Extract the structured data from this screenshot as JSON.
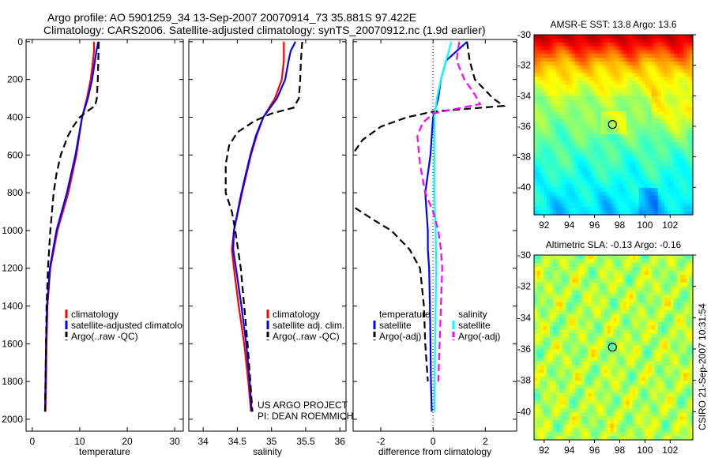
{
  "title_line1": "Argo profile: AO 5901259_34 13-Sep-2007 20070914_73 35.881S 97.422E",
  "title_line2": "Climatology: CARS2006. Satellite-adjusted climatology: synTS_20070912.nc (1.9d earlier)",
  "credit_project": "US ARGO PROJECT",
  "credit_pi": "PI: DEAN ROEMMICH",
  "timestamp": "CSIRO 21-Sep-2007 10:31:54",
  "colors": {
    "climatology": "#ff0000",
    "satellite": "#0000ff",
    "argo": "#000000",
    "sal_satellite": "#00ffff",
    "sal_argo": "#ff00ff"
  },
  "chart_data": [
    {
      "type": "line",
      "xlabel": "temperature",
      "ylabel": "",
      "xlim": [
        -1.3,
        31.8
      ],
      "ylim": [
        2063,
        -12
      ],
      "xticks": [
        "0",
        "10",
        "20",
        "30"
      ],
      "yticks": [
        "0",
        "200",
        "400",
        "600",
        "800",
        "1000",
        "1200",
        "1400",
        "1600",
        "1800",
        "2000"
      ],
      "legend": [
        "climatology",
        "satellite-adjusted climatology",
        "Argo(..raw -QC)"
      ],
      "series": [
        {
          "name": "climatology",
          "color": "#ff0000",
          "dash": false,
          "depth": [
            0,
            50,
            100,
            200,
            300,
            400,
            500,
            600,
            800,
            1000,
            1200,
            1400,
            1600,
            1800,
            1960
          ],
          "values": [
            13.0,
            13.0,
            12.8,
            12.3,
            11.5,
            10.5,
            9.9,
            9.3,
            7.6,
            5.3,
            3.8,
            3.2,
            3.0,
            2.9,
            2.8
          ]
        },
        {
          "name": "satellite-adjusted climatology",
          "color": "#0000ff",
          "dash": false,
          "depth": [
            0,
            50,
            100,
            200,
            300,
            400,
            500,
            600,
            800,
            1000,
            1200,
            1400,
            1600,
            1800,
            1960
          ],
          "values": [
            13.9,
            13.5,
            13.2,
            12.6,
            11.7,
            10.5,
            9.8,
            9.1,
            7.3,
            5.1,
            3.7,
            3.1,
            2.9,
            2.8,
            2.7
          ]
        },
        {
          "name": "Argo(..raw -QC)",
          "color": "#000000",
          "dash": true,
          "depth": [
            0,
            100,
            200,
            300,
            340,
            370,
            400,
            450,
            500,
            600,
            700,
            800,
            1000,
            1200,
            1400,
            1600,
            1800,
            1960
          ],
          "values": [
            14.0,
            13.9,
            13.8,
            13.6,
            13.2,
            11.5,
            10.0,
            8.6,
            7.5,
            6.0,
            5.1,
            4.5,
            3.8,
            3.3,
            3.0,
            2.9,
            2.8,
            2.7
          ]
        }
      ]
    },
    {
      "type": "line",
      "xlabel": "salinity",
      "xlim": [
        33.79,
        36.09
      ],
      "ylim": [
        2063,
        -12
      ],
      "xticks": [
        "34",
        "34.5",
        "35",
        "35.5",
        "36"
      ],
      "legend": [
        "climatology",
        "satellite adj. clim.",
        "Argo(..raw -QC)"
      ],
      "series": [
        {
          "name": "climatology",
          "color": "#ff0000",
          "dash": false,
          "depth": [
            0,
            50,
            100,
            200,
            300,
            400,
            500,
            600,
            800,
            1000,
            1100,
            1200,
            1400,
            1600,
            1800,
            1960
          ],
          "values": [
            35.18,
            35.18,
            35.18,
            35.15,
            35.05,
            34.88,
            34.78,
            34.7,
            34.57,
            34.45,
            34.42,
            34.45,
            34.52,
            34.6,
            34.66,
            34.7
          ]
        },
        {
          "name": "satellite adj. clim.",
          "color": "#0000ff",
          "dash": false,
          "depth": [
            0,
            50,
            100,
            200,
            300,
            400,
            500,
            600,
            800,
            1000,
            1100,
            1200,
            1400,
            1600,
            1800,
            1960
          ],
          "values": [
            35.35,
            35.28,
            35.25,
            35.2,
            35.08,
            34.88,
            34.77,
            34.69,
            34.56,
            34.45,
            34.44,
            34.48,
            34.56,
            34.63,
            34.68,
            34.71
          ]
        },
        {
          "name": "Argo(..raw -QC)",
          "color": "#000000",
          "dash": true,
          "depth": [
            0,
            100,
            200,
            300,
            350,
            380,
            420,
            480,
            550,
            650,
            800,
            900,
            1000,
            1200,
            1400,
            1600,
            1800,
            1960
          ],
          "values": [
            35.45,
            35.43,
            35.42,
            35.4,
            35.32,
            35.0,
            34.75,
            34.5,
            34.38,
            34.33,
            34.33,
            34.42,
            34.47,
            34.55,
            34.6,
            34.65,
            34.69,
            34.72
          ]
        }
      ]
    },
    {
      "type": "line",
      "xlabel": "difference from climatology",
      "xlim": [
        -3.06,
        3.2
      ],
      "ylim": [
        2063,
        -12
      ],
      "xticks": [
        "-2",
        "0",
        "2"
      ],
      "legend_temperature": [
        "temperature",
        "satellite",
        "Argo(-adj)"
      ],
      "legend_salinity": [
        "salinity",
        "satellite",
        "Argo(-adj)"
      ],
      "series": [
        {
          "name": "temperature satellite",
          "color": "#0000ff",
          "dash": false,
          "depth": [
            0,
            50,
            100,
            200,
            300,
            400,
            500,
            600,
            700,
            800,
            900,
            1000,
            1100,
            1200,
            1400,
            1600,
            1800,
            1960
          ],
          "values": [
            1.3,
            0.9,
            0.5,
            0.3,
            0.2,
            0.0,
            -0.05,
            -0.1,
            -0.2,
            -0.3,
            -0.25,
            -0.2,
            -0.2,
            -0.15,
            -0.12,
            -0.1,
            -0.08,
            -0.05
          ]
        },
        {
          "name": "temperature Argo(-adj)",
          "color": "#000000",
          "dash": true,
          "depth": [
            0,
            100,
            200,
            300,
            340,
            370,
            400,
            450,
            520,
            600,
            870,
            950,
            1000,
            1100,
            1200,
            1400,
            1600,
            1800
          ],
          "values": [
            1.3,
            1.4,
            1.6,
            2.3,
            2.7,
            0.0,
            -1.0,
            -2.0,
            -2.7,
            -3.1,
            -3.1,
            -2.2,
            -1.6,
            -0.9,
            -0.5,
            -0.35,
            -0.3,
            -0.2
          ]
        },
        {
          "name": "salinity satellite",
          "color": "#00ffff",
          "dash": false,
          "depth": [
            0,
            50,
            100,
            200,
            300,
            400,
            600,
            800,
            1000,
            1200,
            1400,
            1600,
            1800,
            1960
          ],
          "values": [
            0.7,
            0.6,
            0.5,
            0.3,
            0.15,
            0.05,
            0.05,
            0.05,
            0.1,
            0.12,
            0.1,
            0.08,
            0.06,
            0.05
          ]
        },
        {
          "name": "salinity Argo(-adj)",
          "color": "#ff00ff",
          "dash": true,
          "depth": [
            0,
            100,
            200,
            280,
            330,
            380,
            430,
            500,
            650,
            800,
            900,
            1000,
            1100,
            1200,
            1400,
            1600,
            1800
          ],
          "values": [
            1.0,
            0.9,
            1.2,
            1.6,
            1.8,
            0.0,
            -0.4,
            -0.6,
            -0.5,
            -0.3,
            0.0,
            0.2,
            0.3,
            0.35,
            0.3,
            0.25,
            0.2
          ]
        }
      ]
    },
    {
      "type": "heatmap",
      "title": "AMSR-E SST: 13.8 Argo: 13.6",
      "xlim": [
        91.2,
        103.8
      ],
      "ylim": [
        -41.8,
        -30
      ],
      "xticks": [
        "92",
        "94",
        "96",
        "98",
        "100",
        "102"
      ],
      "yticks": [
        "-30",
        "-32",
        "-34",
        "-36",
        "-38",
        "-40"
      ],
      "marker": {
        "lon": 97.422,
        "lat": -35.881
      }
    },
    {
      "type": "heatmap",
      "title": "Altimetric SLA: -0.13 Argo: -0.16",
      "xlim": [
        91.2,
        103.8
      ],
      "ylim": [
        -41.8,
        -30
      ],
      "xticks": [
        "92",
        "94",
        "96",
        "98",
        "100",
        "102"
      ],
      "yticks": [
        "-30",
        "-32",
        "-34",
        "-36",
        "-38",
        "-40"
      ],
      "marker": {
        "lon": 97.422,
        "lat": -35.881
      }
    }
  ]
}
